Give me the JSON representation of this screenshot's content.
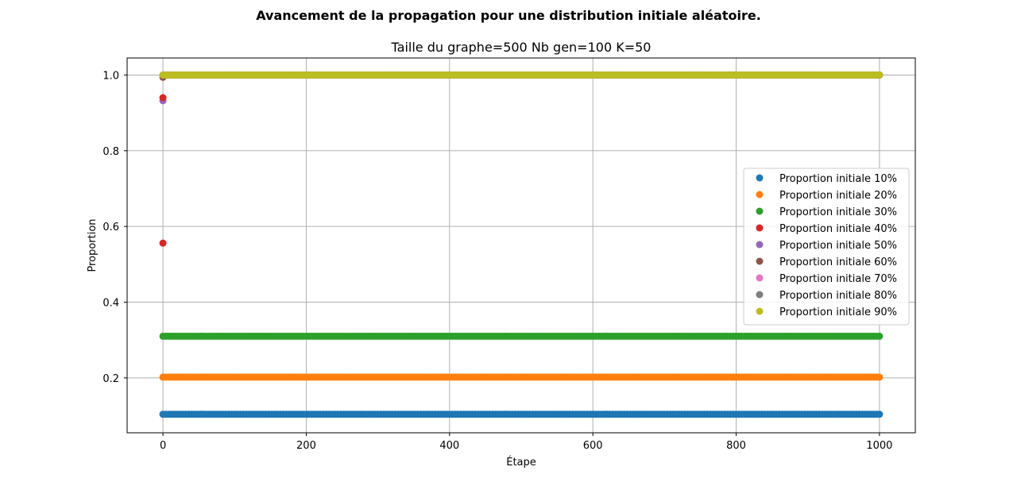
{
  "chart_data": {
    "type": "scatter",
    "suptitle": "Avancement de la propagation pour une distribution initiale aléatoire.",
    "title": "Taille du graphe=500 Nb gen=100 K=50",
    "xlabel": "Étape",
    "ylabel": "Proportion",
    "xlim": [
      -50,
      1050
    ],
    "ylim": [
      0.055,
      1.045
    ],
    "xticks": [
      0,
      200,
      400,
      600,
      800,
      1000
    ],
    "yticks": [
      0.2,
      0.4,
      0.6,
      0.8,
      1.0
    ],
    "xtick_labels": [
      "0",
      "200",
      "400",
      "600",
      "800",
      "1000"
    ],
    "ytick_labels": [
      "0.2",
      "0.4",
      "0.6",
      "0.8",
      "1.0"
    ],
    "grid": true,
    "legend_position": "center-right",
    "x_range": [
      0,
      1000
    ],
    "series": [
      {
        "name": "Proportion initiale 10%",
        "color": "#1f77b4",
        "initial": 0.104,
        "steady": 0.104
      },
      {
        "name": "Proportion initiale 20%",
        "color": "#ff7f0e",
        "initial": 0.202,
        "steady": 0.202
      },
      {
        "name": "Proportion initiale 30%",
        "color": "#2ca02c",
        "initial": 0.31,
        "steady": 0.31
      },
      {
        "name": "Proportion initiale 40%",
        "color": "#d62728",
        "initial": 0.556,
        "steady": 1.0
      },
      {
        "name": "Proportion initiale 50%",
        "color": "#9467bd",
        "initial": 0.932,
        "steady": 1.0
      },
      {
        "name": "Proportion initiale 60%",
        "color": "#8c564b",
        "initial": 0.994,
        "steady": 1.0
      },
      {
        "name": "Proportion initiale 70%",
        "color": "#e377c2",
        "initial": 1.0,
        "steady": 1.0
      },
      {
        "name": "Proportion initiale 80%",
        "color": "#7f7f7f",
        "initial": 1.0,
        "steady": 1.0
      },
      {
        "name": "Proportion initiale 90%",
        "color": "#bcbd22",
        "initial": 1.0,
        "steady": 1.0
      }
    ],
    "extra_points": [
      {
        "series": "Proportion initiale 40%",
        "x": 0,
        "y": 0.94
      }
    ]
  }
}
